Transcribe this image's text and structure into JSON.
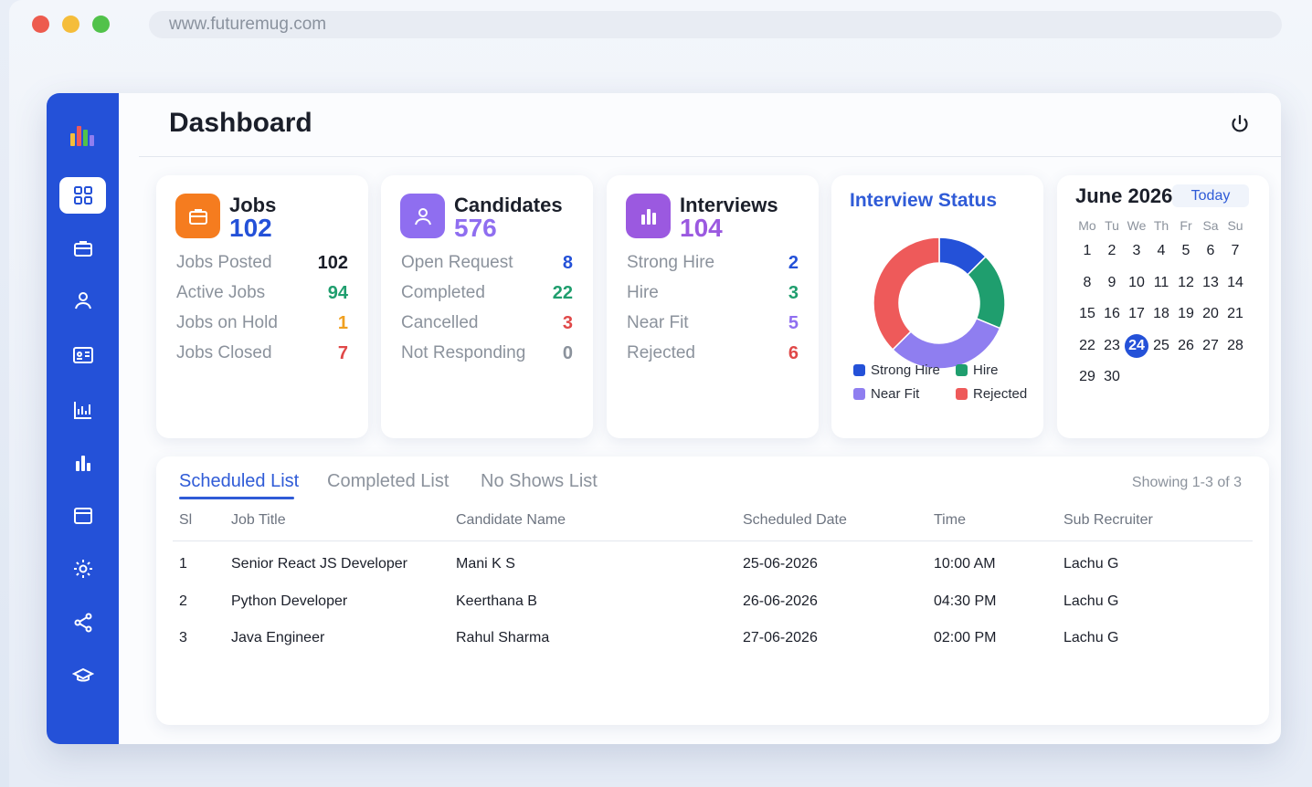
{
  "browser": {
    "url": "www.futuremug.com"
  },
  "header": {
    "title": "Dashboard"
  },
  "colors": {
    "accent": "#2451d8",
    "sidebar": "#2451d8",
    "jobs": "#f57c1f",
    "candidates": "#8f6ef0",
    "interviews": "#9b59e0",
    "strong_hire": "#2451d8",
    "hire": "#1f9e6e",
    "near_fit": "#8f7ef0",
    "rejected": "#ee5a5a"
  },
  "sidebar": {
    "items": [
      {
        "icon": "dashboard-grid-icon",
        "active": true
      },
      {
        "icon": "briefcase-icon"
      },
      {
        "icon": "user-icon"
      },
      {
        "icon": "id-card-icon"
      },
      {
        "icon": "line-chart-icon"
      },
      {
        "icon": "bar-chart-icon"
      },
      {
        "icon": "calendar-window-icon"
      },
      {
        "icon": "settings-gear-icon"
      },
      {
        "icon": "share-icon"
      },
      {
        "icon": "graduation-cap-icon"
      }
    ]
  },
  "cards": {
    "jobs": {
      "title": "Jobs",
      "total": "102",
      "rows": [
        {
          "label": "Jobs Posted",
          "value": "102"
        },
        {
          "label": "Active Jobs",
          "value": "94"
        },
        {
          "label": "Jobs on Hold",
          "value": "1"
        },
        {
          "label": "Jobs Closed",
          "value": "7"
        }
      ]
    },
    "candidates": {
      "title": "Candidates",
      "total": "576",
      "rows": [
        {
          "label": "Open Request",
          "value": "8"
        },
        {
          "label": "Completed",
          "value": "22"
        },
        {
          "label": "Cancelled",
          "value": "3"
        },
        {
          "label": "Not Responding",
          "value": "0"
        }
      ]
    },
    "interviews": {
      "title": "Interviews",
      "total": "104",
      "rows": [
        {
          "label": "Strong Hire",
          "value": "2"
        },
        {
          "label": "Hire",
          "value": "3"
        },
        {
          "label": "Near Fit",
          "value": "5"
        },
        {
          "label": "Rejected",
          "value": "6"
        }
      ]
    }
  },
  "interview_status": {
    "title": "Interview Status",
    "legend": [
      "Strong Hire",
      "Hire",
      "Near Fit",
      "Rejected"
    ]
  },
  "chart_data": {
    "type": "pie",
    "categories": [
      "Strong Hire",
      "Hire",
      "Near Fit",
      "Rejected"
    ],
    "values": [
      2,
      3,
      5,
      6
    ],
    "title": "Interview Status",
    "donut": true,
    "colors": [
      "#2451d8",
      "#1f9e6e",
      "#8f7ef0",
      "#ee5a5a"
    ],
    "legend": "bottom"
  },
  "calendar": {
    "month": "June 2026",
    "today_label": "Today",
    "weekdays": [
      "Mo",
      "Tu",
      "We",
      "Th",
      "Fr",
      "Sa",
      "Su"
    ],
    "weeks": [
      [
        "1",
        "2",
        "3",
        "4",
        "5",
        "6",
        "7"
      ],
      [
        "8",
        "9",
        "10",
        "11",
        "12",
        "13",
        "14"
      ],
      [
        "15",
        "16",
        "17",
        "18",
        "19",
        "20",
        "21"
      ],
      [
        "22",
        "23",
        "24",
        "25",
        "26",
        "27",
        "28"
      ],
      [
        "29",
        "30",
        "",
        "",
        "",
        "",
        ""
      ]
    ],
    "selected": "24"
  },
  "table": {
    "tabs": [
      "Scheduled List",
      "Completed List",
      "No Shows List"
    ],
    "active_tab": "Scheduled List",
    "showing": "Showing 1-3 of 3",
    "columns": [
      "Sl",
      "Job Title",
      "Candidate Name",
      "Scheduled Date",
      "Time",
      "Sub Recruiter"
    ],
    "rows": [
      [
        "1",
        "Senior React JS Developer",
        "Mani K S",
        "25-06-2026",
        "10:00 AM",
        "Lachu G"
      ],
      [
        "2",
        "Python Developer",
        "Keerthana B",
        "26-06-2026",
        "04:30 PM",
        "Lachu G"
      ],
      [
        "3",
        "Java Engineer",
        "Rahul Sharma",
        "27-06-2026",
        "02:00 PM",
        "Lachu G"
      ]
    ]
  }
}
